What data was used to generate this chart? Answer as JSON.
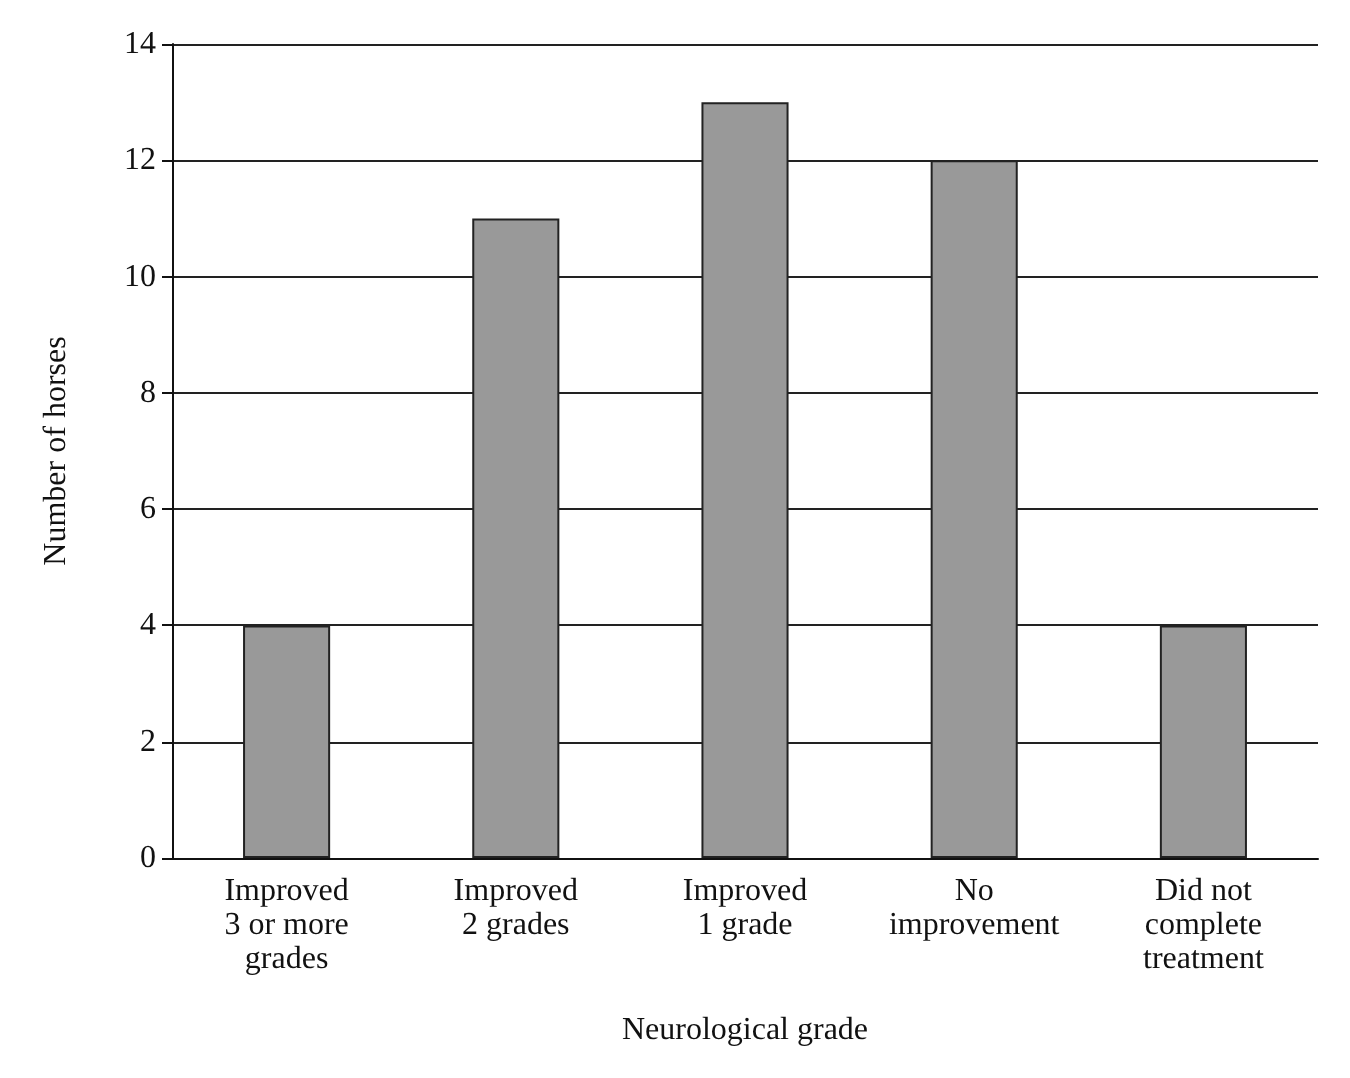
{
  "chart_data": {
    "type": "bar",
    "xlabel": "Neurological grade",
    "ylabel": "Number of horses",
    "categories": [
      "Improved\n3 or more\ngrades",
      "Improved\n2 grades",
      "Improved\n1 grade",
      "No\nimprovement",
      "Did not\ncomplete\ntreatment"
    ],
    "values": [
      4,
      11,
      13,
      12,
      4
    ],
    "color": "#999999",
    "ylim": [
      0,
      14
    ],
    "yticks": [
      0,
      2,
      4,
      6,
      8,
      10,
      12,
      14
    ],
    "grid": "y"
  }
}
